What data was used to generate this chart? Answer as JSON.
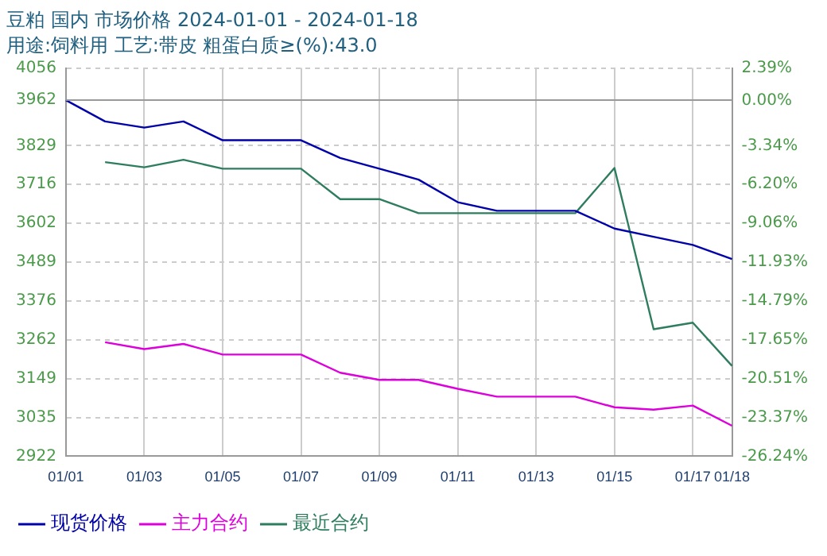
{
  "chart_data": {
    "type": "line",
    "title": "豆粕 国内 市场价格 2024-01-01 - 2024-01-18",
    "subtitle": "用途:饲料用 工艺:带皮 粗蛋白质≥(%):43.0",
    "categories": [
      "01/01",
      null,
      "01/03",
      null,
      "01/05",
      null,
      "01/07",
      null,
      "01/09",
      null,
      "01/11",
      null,
      "01/13",
      null,
      "01/15",
      null,
      "01/17",
      "01/18"
    ],
    "series": [
      {
        "name": "现货价格",
        "color": "#0000aa",
        "values": [
          3962,
          3900,
          3882,
          3900,
          3845,
          3845,
          3845,
          3793,
          3762,
          3730,
          3664,
          3639,
          3639,
          3639,
          3587,
          3563,
          3539,
          3498
        ]
      },
      {
        "name": "主力合约",
        "color": "#dd00dd",
        "values": [
          null,
          3255,
          3235,
          3250,
          3219,
          3219,
          3219,
          3166,
          3145,
          3145,
          3119,
          3096,
          3096,
          3096,
          3065,
          3058,
          3070,
          3011
        ]
      },
      {
        "name": "最近合约",
        "color": "#2e7d5e",
        "values": [
          null,
          3781,
          3766,
          3788,
          3762,
          3762,
          3762,
          3673,
          3673,
          3632,
          3632,
          3632,
          3632,
          3632,
          3764,
          3293,
          3312,
          3186
        ]
      }
    ],
    "ylim": [
      2922,
      4056
    ],
    "yticks": [
      4056,
      3962,
      3829,
      3716,
      3602,
      3489,
      3376,
      3262,
      3149,
      3035,
      2922
    ],
    "y2lim": [
      -26.24,
      2.39
    ],
    "y2ticks": [
      {
        "value": 2.39,
        "label": "2.39%"
      },
      {
        "value": 0,
        "label": "0.00%"
      },
      {
        "value": -3.34,
        "label": "-3.34%"
      },
      {
        "value": -6.2,
        "label": "-6.20%"
      },
      {
        "value": -9.06,
        "label": "-9.06%"
      },
      {
        "value": -11.93,
        "label": "-11.93%"
      },
      {
        "value": -14.79,
        "label": "-14.79%"
      },
      {
        "value": -17.65,
        "label": "-17.65%"
      },
      {
        "value": -20.51,
        "label": "-20.51%"
      },
      {
        "value": -23.37,
        "label": "-23.37%"
      },
      {
        "value": -26.24,
        "label": "-26.24%"
      }
    ],
    "ref_lines": [
      {
        "axis": "y",
        "value": 3962,
        "color": "#999999",
        "line_style": "solid"
      }
    ],
    "grid": true,
    "legend": "bottom left",
    "marker": "none",
    "line_style": "solid"
  }
}
